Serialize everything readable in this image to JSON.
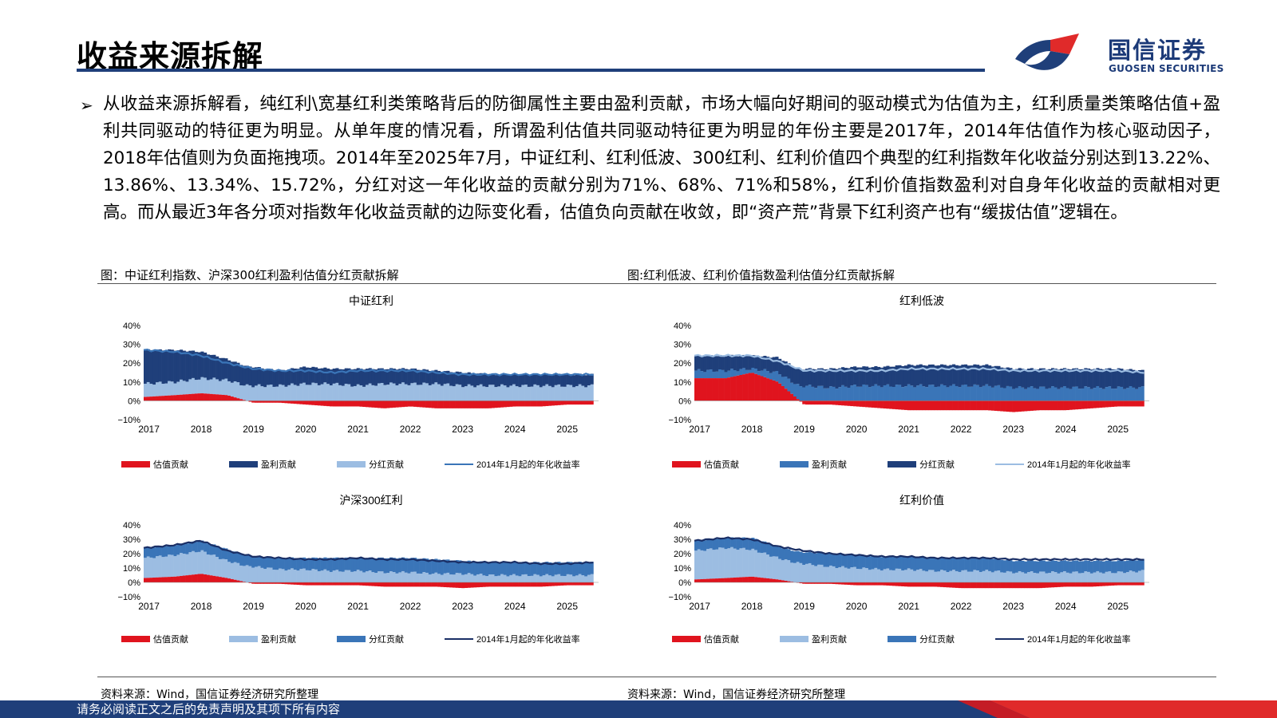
{
  "header": {
    "title": "收益来源拆解",
    "logo_cn": "国信证券",
    "logo_en": "GUOSEN SECURITIES"
  },
  "body": {
    "paragraph": "从收益来源拆解看，纯红利\\宽基红利类策略背后的防御属性主要由盈利贡献，市场大幅向好期间的驱动模式为估值为主，红利质量类策略估值+盈利共同驱动的特征更为明显。从单年度的情况看，所谓盈利估值共同驱动特征更为明显的年份主要是2017年，2014年估值作为核心驱动因子，2018年估值则为负面拖拽项。2014年至2025年7月，中证红利、红利低波、300红利、红利价值四个典型的红利指数年化收益分别达到13.22%、13.86%、13.34%、15.72%，分红对这一年化收益的贡献分别为71%、68%、71%和58%，红利价值指数盈利对自身年化收益的贡献相对更高。而从最近3年各分项对指数年化收益贡献的边际变化看，估值负向贡献在收敛，即“资产荒”背景下红利资产也有“缓拔估值”逻辑在。"
  },
  "captions": {
    "left": "图：中证红利指数、沪深300红利盈利估值分红贡献拆解",
    "right": "图:红利低波、红利价值指数盈利估值分红贡献拆解",
    "source_left": "资料来源：Wind，国信证券经济研究所整理",
    "source_right": "资料来源：Wind，国信证券经济研究所整理"
  },
  "footer": {
    "disclaimer": "请务必阅读正文之后的免责声明及其项下所有内容"
  },
  "colors": {
    "brand_navy": "#1f3f7a",
    "brand_red": "#e02a2a",
    "valuation": "#e0141e",
    "earnings_dark": "#1f3f7a",
    "dividend_light": "#9cbde2",
    "mid_blue": "#3a75b8",
    "line_dark": "#1a2f66"
  },
  "chart_data": [
    {
      "type": "area",
      "title": "中证红利",
      "x_ticks": [
        "2017",
        "2018",
        "2019",
        "2020",
        "2021",
        "2022",
        "2023",
        "2024",
        "2025"
      ],
      "y_ticks": [
        "40%",
        "30%",
        "20%",
        "10%",
        "0%",
        "−10%"
      ],
      "ylim": [
        -10,
        40
      ],
      "x": [
        2016.9,
        2017.5,
        2018.0,
        2018.5,
        2019.0,
        2019.5,
        2020.0,
        2020.5,
        2021.0,
        2021.5,
        2022.0,
        2022.5,
        2023.0,
        2023.5,
        2024.0,
        2024.5,
        2025.0,
        2025.5
      ],
      "stack_order": [
        "分红贡献",
        "盈利贡献"
      ],
      "series": [
        {
          "name": "估值贡献",
          "color": "#e0141e",
          "values": [
            2,
            3,
            4,
            3,
            -1,
            -1,
            -2,
            -3,
            -3,
            -4,
            -3,
            -4,
            -4,
            -4,
            -3,
            -3,
            -2,
            -2
          ]
        },
        {
          "name": "盈利贡献",
          "color": "#1f3f7a",
          "values": [
            18,
            17,
            14,
            11,
            10,
            8,
            9,
            8,
            9,
            8,
            8,
            7,
            7,
            6,
            6,
            6,
            6,
            6
          ]
        },
        {
          "name": "分红贡献",
          "color": "#9cbde2",
          "values": [
            7,
            7,
            8,
            8,
            8,
            8,
            9,
            9,
            8,
            9,
            9,
            9,
            8,
            8,
            8,
            8,
            8,
            8
          ]
        },
        {
          "name": "2014年1月起的年化收益率",
          "color": "#3a75b8",
          "values": [
            27,
            26,
            24,
            20,
            17,
            16,
            16,
            15,
            16,
            16,
            16,
            15,
            14,
            14,
            14,
            14,
            14,
            14
          ]
        }
      ],
      "legend": [
        "估值贡献",
        "盈利贡献",
        "分红贡献",
        "2014年1月起的年化收益率"
      ]
    },
    {
      "type": "area",
      "title": "红利低波",
      "x_ticks": [
        "2017",
        "2018",
        "2019",
        "2020",
        "2021",
        "2022",
        "2023",
        "2024",
        "2025"
      ],
      "y_ticks": [
        "40%",
        "30%",
        "20%",
        "10%",
        "0%",
        "−10%"
      ],
      "ylim": [
        -10,
        40
      ],
      "x": [
        2016.9,
        2017.5,
        2018.0,
        2018.5,
        2019.0,
        2019.5,
        2020.0,
        2020.5,
        2021.0,
        2021.5,
        2022.0,
        2022.5,
        2023.0,
        2023.5,
        2024.0,
        2024.5,
        2025.0,
        2025.5
      ],
      "stack_order": [
        "盈利贡献",
        "分红贡献"
      ],
      "series": [
        {
          "name": "估值贡献",
          "color": "#e0141e",
          "values": [
            12,
            12,
            15,
            10,
            -2,
            -2,
            -3,
            -4,
            -5,
            -5,
            -5,
            -5,
            -6,
            -5,
            -5,
            -4,
            -3,
            -3
          ]
        },
        {
          "name": "盈利贡献",
          "color": "#3a75b8",
          "values": [
            4,
            4,
            2,
            5,
            8,
            7,
            8,
            8,
            8,
            8,
            8,
            8,
            7,
            7,
            7,
            7,
            7,
            7
          ]
        },
        {
          "name": "分红贡献",
          "color": "#1f3f7a",
          "values": [
            8,
            8,
            7,
            8,
            9,
            10,
            10,
            10,
            11,
            11,
            11,
            11,
            10,
            10,
            10,
            10,
            10,
            9
          ]
        },
        {
          "name": "2014年1月起的年化收益率",
          "color": "#9cbde2",
          "values": [
            24,
            24,
            24,
            21,
            16,
            16,
            16,
            16,
            17,
            17,
            17,
            17,
            16,
            16,
            16,
            16,
            16,
            15
          ]
        }
      ],
      "legend": [
        "估值贡献",
        "盈利贡献",
        "分红贡献",
        "2014年1月起的年化收益率"
      ]
    },
    {
      "type": "area",
      "title": "沪深300红利",
      "x_ticks": [
        "2017",
        "2018",
        "2019",
        "2020",
        "2021",
        "2022",
        "2023",
        "2024",
        "2025"
      ],
      "y_ticks": [
        "40%",
        "30%",
        "20%",
        "10%",
        "0%",
        "−10%"
      ],
      "ylim": [
        -10,
        40
      ],
      "x": [
        2016.9,
        2017.5,
        2018.0,
        2018.5,
        2019.0,
        2019.5,
        2020.0,
        2020.5,
        2021.0,
        2021.5,
        2022.0,
        2022.5,
        2023.0,
        2023.5,
        2024.0,
        2024.5,
        2025.0,
        2025.5
      ],
      "stack_order": [
        "盈利贡献",
        "分红贡献"
      ],
      "series": [
        {
          "name": "估值贡献",
          "color": "#e0141e",
          "values": [
            3,
            4,
            6,
            3,
            -1,
            -1,
            -2,
            -2,
            -2,
            -3,
            -3,
            -3,
            -4,
            -3,
            -3,
            -3,
            -2,
            -2
          ]
        },
        {
          "name": "盈利贡献",
          "color": "#9cbde2",
          "values": [
            14,
            15,
            16,
            12,
            11,
            9,
            9,
            8,
            8,
            7,
            7,
            6,
            6,
            5,
            5,
            5,
            5,
            5
          ]
        },
        {
          "name": "分红贡献",
          "color": "#3a75b8",
          "values": [
            7,
            7,
            7,
            8,
            7,
            8,
            8,
            9,
            9,
            10,
            10,
            10,
            9,
            9,
            9,
            9,
            9,
            9
          ]
        },
        {
          "name": "2014年1月起的年化收益率",
          "color": "#1a2f66",
          "values": [
            24,
            26,
            29,
            22,
            18,
            17,
            16,
            16,
            17,
            16,
            16,
            15,
            14,
            14,
            14,
            13,
            13,
            14
          ]
        }
      ],
      "legend": [
        "估值贡献",
        "盈利贡献",
        "分红贡献",
        "2014年1月起的年化收益率"
      ]
    },
    {
      "type": "area",
      "title": "红利价值",
      "x_ticks": [
        "2017",
        "2018",
        "2019",
        "2020",
        "2021",
        "2022",
        "2023",
        "2024",
        "2025"
      ],
      "y_ticks": [
        "40%",
        "30%",
        "20%",
        "10%",
        "0%",
        "−10%"
      ],
      "ylim": [
        -10,
        40
      ],
      "x": [
        2016.9,
        2017.5,
        2018.0,
        2018.5,
        2019.0,
        2019.5,
        2020.0,
        2020.5,
        2021.0,
        2021.5,
        2022.0,
        2022.5,
        2023.0,
        2023.5,
        2024.0,
        2024.5,
        2025.0,
        2025.5
      ],
      "stack_order": [
        "盈利贡献",
        "分红贡献"
      ],
      "series": [
        {
          "name": "估值贡献",
          "color": "#e0141e",
          "values": [
            2,
            3,
            4,
            2,
            -1,
            -1,
            -2,
            -2,
            -3,
            -3,
            -4,
            -4,
            -4,
            -4,
            -3,
            -3,
            -2,
            -2
          ]
        },
        {
          "name": "盈利贡献",
          "color": "#9cbde2",
          "values": [
            20,
            21,
            19,
            15,
            13,
            11,
            10,
            9,
            9,
            8,
            8,
            8,
            7,
            7,
            7,
            7,
            7,
            8
          ]
        },
        {
          "name": "分红贡献",
          "color": "#3a75b8",
          "values": [
            7,
            7,
            8,
            8,
            8,
            9,
            9,
            9,
            9,
            9,
            9,
            9,
            8,
            8,
            8,
            8,
            8,
            8
          ]
        },
        {
          "name": "2014年1月起的年化收益率",
          "color": "#1a2f66",
          "values": [
            29,
            31,
            30,
            25,
            22,
            20,
            19,
            18,
            18,
            17,
            17,
            17,
            16,
            16,
            16,
            16,
            16,
            16
          ]
        }
      ],
      "legend": [
        "估值贡献",
        "盈利贡献",
        "分红贡献",
        "2014年1月起的年化收益率"
      ]
    }
  ]
}
